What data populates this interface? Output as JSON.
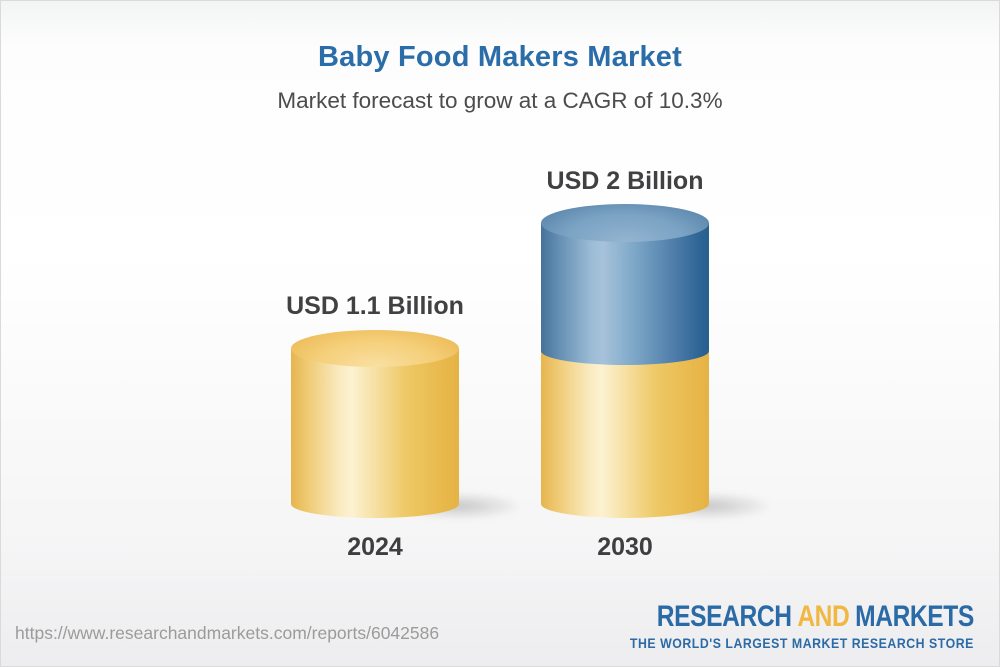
{
  "header": {
    "title": "Baby Food Makers Market",
    "subtitle": "Market forecast to grow at a CAGR of 10.3%"
  },
  "chart_data": {
    "type": "bar",
    "subtype": "3d-stacked-cylinders",
    "categories": [
      "2024",
      "2030"
    ],
    "values": [
      1.1,
      2
    ],
    "value_labels": [
      "USD 1.1 Billion",
      "USD 2 Billion"
    ],
    "unit": "USD Billion",
    "cagr_percent": 10.3,
    "series": [
      {
        "name": "2024 base value",
        "color": "#f2cb70",
        "values": [
          1.1,
          1.1
        ]
      },
      {
        "name": "growth to 2030",
        "color": "#4d7ba6",
        "values": [
          0,
          0.9
        ]
      }
    ],
    "title": "Baby Food Makers Market",
    "xlabel": "",
    "ylabel": "",
    "legend": false,
    "grid": false,
    "ylim": [
      0,
      2.2
    ]
  },
  "footer": {
    "url": "https://www.researchandmarkets.com/reports/6042586",
    "logo": {
      "word1": "RESEARCH",
      "word2": "AND",
      "word3": "MARKETS",
      "tagline": "THE WORLD'S LARGEST MARKET RESEARCH STORE"
    }
  },
  "colors": {
    "title_blue": "#2b6da8",
    "subtitle_gray": "#4c4c4e",
    "label_dark": "#414143",
    "cylinder_yellow": "#f2cb70",
    "cylinder_blue": "#4d7ba6",
    "logo_blue": "#2a6aa6",
    "logo_yellow": "#f0b843",
    "url_gray": "#9b9b9b"
  }
}
